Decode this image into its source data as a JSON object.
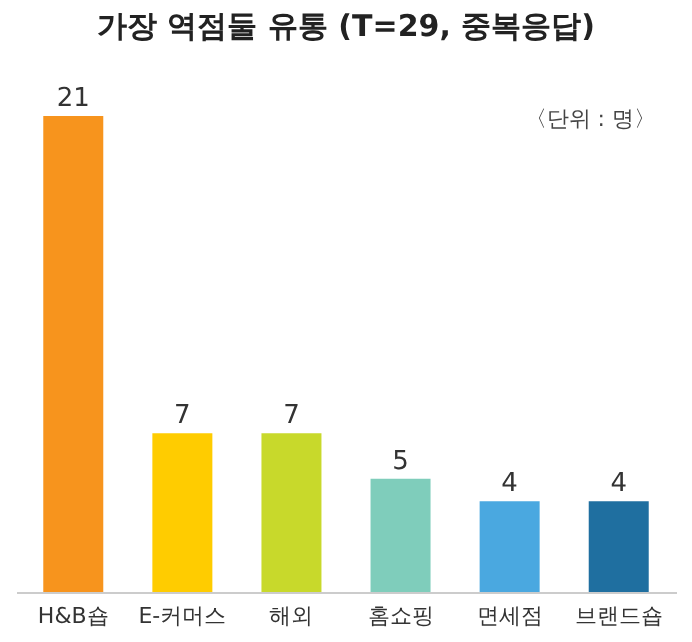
{
  "chart_data": {
    "type": "bar",
    "title": "가장 역점둘 유통 (T=29, 중복응답)",
    "annotations": [
      "〈단위 : 명〉"
    ],
    "categories": [
      "H&B숍",
      "E-커머스",
      "해외",
      "홈쇼핑",
      "면세점",
      "브랜드숍"
    ],
    "values": [
      21,
      7,
      7,
      5,
      4,
      4
    ],
    "colors": [
      "#f7941d",
      "#ffcc00",
      "#c8d92b",
      "#7fcdbb",
      "#4aa8e0",
      "#1f6fa0"
    ],
    "data_labels": true
  }
}
